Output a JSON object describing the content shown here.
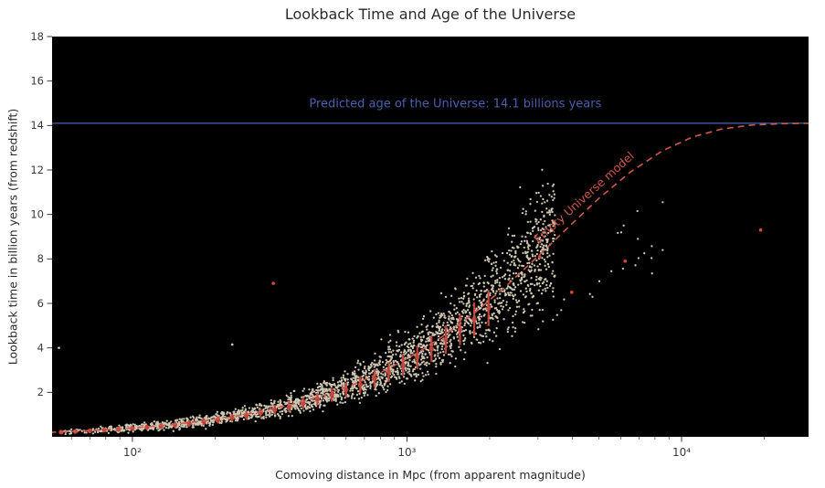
{
  "chart_data": {
    "type": "scatter",
    "title": "Lookback Time and Age of the Universe",
    "xlabel": "Comoving distance in Mpc (from apparent magnitude)",
    "ylabel": "Lookback time in billion years (from redshift)",
    "x_scale": "log",
    "xlim": [
      51,
      29000
    ],
    "ylim": [
      0,
      18
    ],
    "grid": false,
    "legend": "none",
    "xticks": {
      "values": [
        100,
        1000,
        10000
      ],
      "labels": [
        "10²",
        "10³",
        "10⁴"
      ]
    },
    "yticks": [
      2,
      4,
      6,
      8,
      10,
      12,
      14,
      16,
      18
    ],
    "colors": {
      "page_bg": "#ffffff",
      "plot_bg": "#000000",
      "title_text": "#2b2b2b",
      "tick_text": "#3a3a3a",
      "age_line": "#4a5fad",
      "model_line": "#d0584d",
      "binned_marker": "#c2443a",
      "scatter_point": "#f5ead2",
      "red_outlier": "#d8453a"
    },
    "age_line": {
      "y": 14.1,
      "style": "solid"
    },
    "annotations": {
      "predicted_age": {
        "text": "Predicted age of the Universe: 14.1 billions years",
        "x": 1500,
        "y": 14.95,
        "rotation_deg": 0,
        "color": "#4a5fad"
      },
      "empty_universe": {
        "text": "Empty Universe model",
        "x": 4400,
        "y": 10.75,
        "rotation_deg": -42,
        "color": "#d0584d"
      }
    },
    "model": {
      "name": "Empty Universe model",
      "t0_gyr": 14.1,
      "distance_scale_mpc": 3500,
      "line_style": "dashed",
      "curve": {
        "x": [
          50,
          65,
          85,
          110,
          140,
          180,
          230,
          300,
          390,
          500,
          650,
          850,
          1100,
          1400,
          1800,
          2300,
          3000,
          3900,
          5000,
          6500,
          8500,
          11000,
          14000,
          18000,
          23000,
          29000
        ],
        "y": [
          0.2,
          0.26,
          0.34,
          0.44,
          0.55,
          0.71,
          0.9,
          1.16,
          1.49,
          1.88,
          2.39,
          3.04,
          3.8,
          4.65,
          5.67,
          6.79,
          8.12,
          9.47,
          10.72,
          11.9,
          12.86,
          13.49,
          13.84,
          14.02,
          14.08,
          14.1
        ]
      }
    },
    "binned": {
      "x": [
        55,
        62,
        70,
        79,
        89,
        100,
        113,
        127,
        143,
        161,
        182,
        205,
        231,
        260,
        293,
        330,
        372,
        419,
        472,
        532,
        600,
        676,
        762,
        858,
        967,
        1090,
        1228,
        1384,
        1560,
        1758,
        1981
      ],
      "y": [
        0.21,
        0.24,
        0.27,
        0.3,
        0.34,
        0.38,
        0.43,
        0.48,
        0.54,
        0.6,
        0.68,
        0.76,
        0.86,
        0.96,
        1.08,
        1.21,
        1.35,
        1.51,
        1.69,
        1.89,
        2.11,
        2.35,
        2.62,
        2.91,
        3.23,
        3.58,
        3.96,
        4.38,
        4.82,
        5.29,
        5.79
      ],
      "yerr": [
        0.09,
        0.09,
        0.09,
        0.1,
        0.1,
        0.11,
        0.12,
        0.12,
        0.13,
        0.14,
        0.15,
        0.16,
        0.17,
        0.19,
        0.2,
        0.22,
        0.24,
        0.26,
        0.28,
        0.31,
        0.33,
        0.37,
        0.4,
        0.44,
        0.48,
        0.53,
        0.58,
        0.63,
        0.69,
        0.75,
        0.81
      ]
    },
    "red_outliers": [
      [
        326,
        6.9
      ],
      [
        3040,
        8.1
      ],
      [
        3980,
        6.5
      ],
      [
        6230,
        7.9
      ],
      [
        19400,
        9.3
      ]
    ],
    "scatter": {
      "seed": 20,
      "count": 2400,
      "x_bias": 0.62,
      "xlog_range": [
        1.72,
        3.54
      ],
      "rel_spread": 0.3,
      "abs_spread": 0.1,
      "tail_count": 26,
      "tail_xlog_range": [
        3.42,
        3.95
      ],
      "point_radius": 1.15,
      "opacity": 0.85,
      "fixed_points": [
        [
          54,
          4.0
        ],
        [
          231,
          4.15
        ]
      ]
    }
  }
}
